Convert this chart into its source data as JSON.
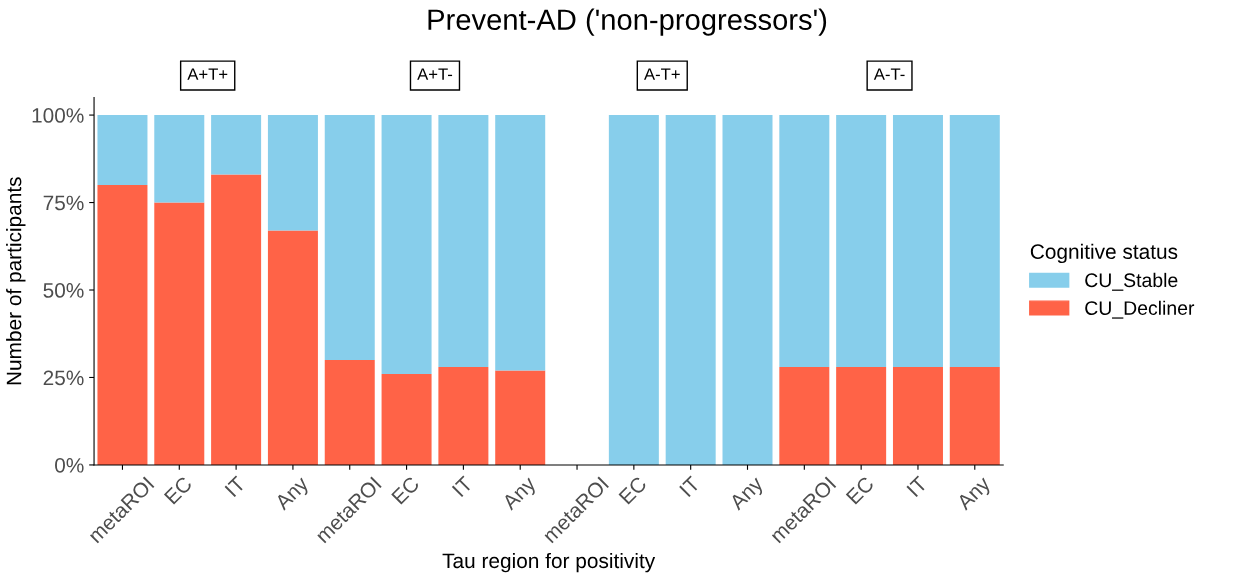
{
  "chart_data": {
    "type": "bar",
    "title": "Prevent-AD ('non-progressors')",
    "xlabel": "Tau region for positivity",
    "ylabel": "Number of participants",
    "categories": [
      "metaROI",
      "EC",
      "IT",
      "Any",
      "metaROI",
      "EC",
      "IT",
      "Any",
      "metaROI",
      "EC",
      "IT",
      "Any",
      "metaROI",
      "EC",
      "IT",
      "Any"
    ],
    "stacked": true,
    "series": [
      {
        "name": "CU_Decliner",
        "color": "#ff6347",
        "values": [
          80,
          75,
          83,
          67,
          30,
          26,
          28,
          27,
          null,
          0,
          0,
          0,
          28,
          28,
          28,
          28
        ]
      },
      {
        "name": "CU_Stable",
        "color": "#87ceeb",
        "values": [
          20,
          25,
          17,
          33,
          70,
          74,
          72,
          73,
          null,
          100,
          100,
          100,
          72,
          72,
          72,
          72
        ]
      }
    ],
    "ylim": [
      0,
      105
    ],
    "yticks": [
      {
        "value": 0,
        "label": "0%"
      },
      {
        "value": 25,
        "label": "25%"
      },
      {
        "value": 50,
        "label": "50%"
      },
      {
        "value": 75,
        "label": "75%"
      },
      {
        "value": 100,
        "label": "100%"
      }
    ],
    "annotations": [
      "A+T+",
      "A+T-",
      "A-T+",
      "A-T-"
    ],
    "legend": "right",
    "legend_title": "Cognitive status"
  }
}
